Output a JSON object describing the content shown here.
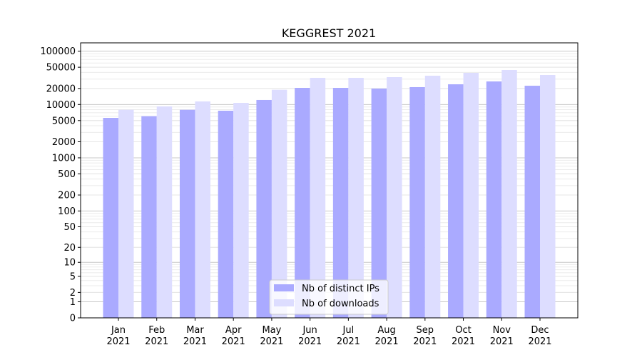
{
  "chart_data": {
    "type": "bar",
    "title": "KEGGREST 2021",
    "xlabel": "",
    "ylabel": "",
    "yscale": "symlog (log10(1+y))",
    "ylim": [
      0,
      143000
    ],
    "yticks": [
      0,
      1,
      2,
      5,
      10,
      20,
      50,
      100,
      200,
      500,
      1000,
      2000,
      5000,
      10000,
      20000,
      50000,
      100000
    ],
    "grid": true,
    "legend_position": "lower-center",
    "categories": [
      "Jan\n2021",
      "Feb\n2021",
      "Mar\n2021",
      "Apr\n2021",
      "May\n2021",
      "Jun\n2021",
      "Jul\n2021",
      "Aug\n2021",
      "Sep\n2021",
      "Oct\n2021",
      "Nov\n2021",
      "Dec\n2021"
    ],
    "series": [
      {
        "name": "Nb of distinct IPs",
        "color": "#aaaaff",
        "values": [
          5620,
          6040,
          7960,
          7650,
          12160,
          20520,
          20520,
          19900,
          21170,
          23940,
          27100,
          22500
        ]
      },
      {
        "name": "Nb of downloads",
        "color": "#ddddff",
        "values": [
          7960,
          9210,
          11420,
          10740,
          18890,
          31620,
          31620,
          32600,
          34670,
          39240,
          44360,
          35740
        ]
      }
    ]
  }
}
